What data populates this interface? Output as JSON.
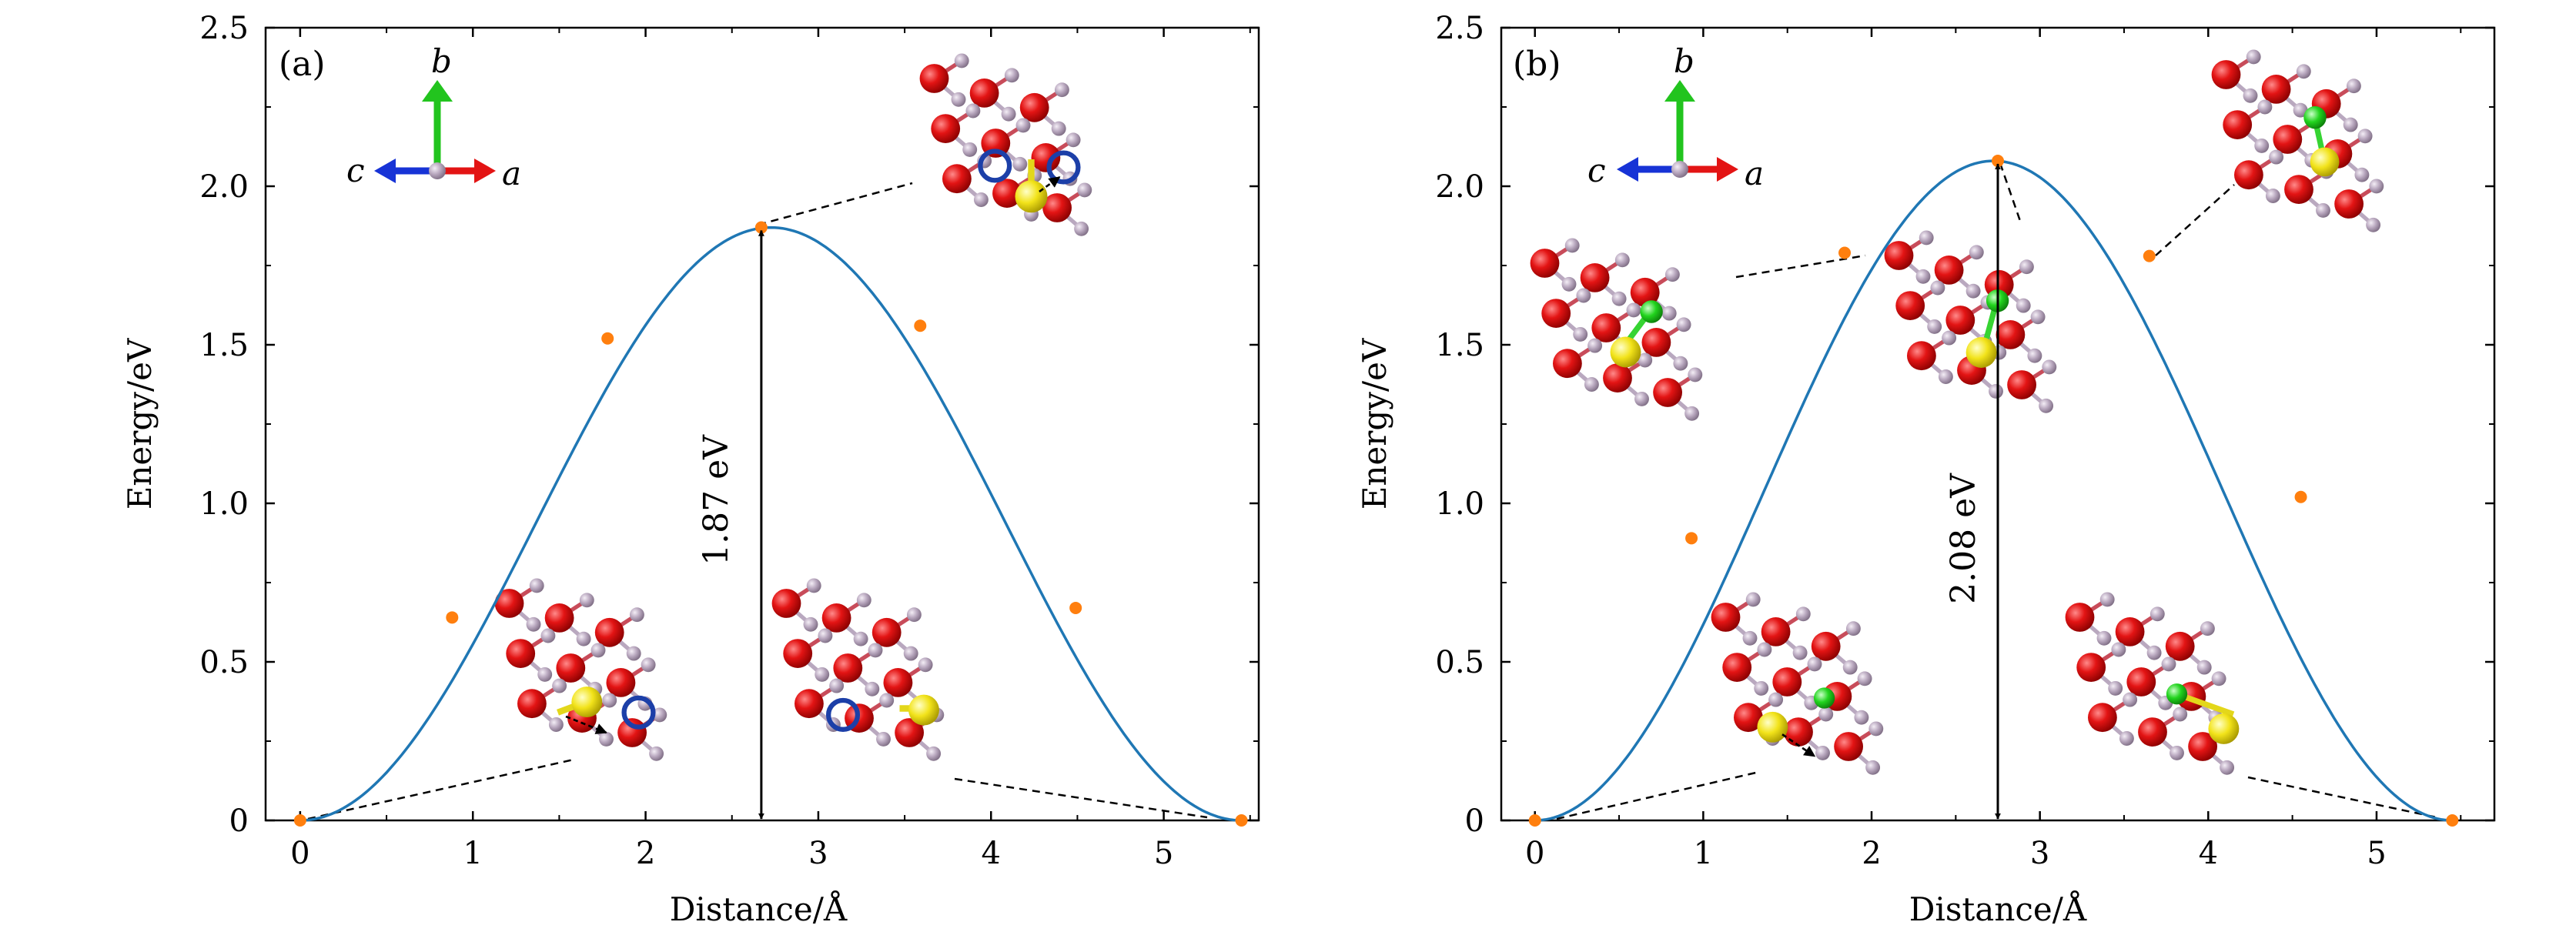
{
  "chart_data": [
    {
      "type": "line",
      "panel_label": "(a)",
      "xlabel": "Distance/Å",
      "ylabel": "Energy/eV",
      "xlim": [
        -0.2,
        5.55
      ],
      "ylim": [
        0,
        2.5
      ],
      "xticks": [
        0,
        1,
        2,
        3,
        4,
        5
      ],
      "yticks": [
        0,
        0.5,
        1.0,
        1.5,
        2.0,
        2.5
      ],
      "ytick_labels": [
        "0",
        "0.5",
        "1.0",
        "1.5",
        "2.0",
        "2.5"
      ],
      "curve": {
        "name": "NEB energy profile",
        "color": "#1f77b4"
      },
      "series": [
        {
          "name": "NEB images",
          "color": "#ff7f0e",
          "x": [
            0,
            0.88,
            1.78,
            2.67,
            3.59,
            4.49,
            5.45
          ],
          "y": [
            0,
            0.64,
            1.52,
            1.87,
            1.56,
            0.67,
            0
          ]
        }
      ],
      "barrier": {
        "x": 2.67,
        "from": 0,
        "to": 1.87,
        "label": "1.87 eV"
      },
      "axes_legend": {
        "b": "b",
        "c": "c",
        "a": "a"
      }
    },
    {
      "type": "line",
      "panel_label": "(b)",
      "xlabel": "Distance/Å",
      "ylabel": "Energy/eV",
      "xlim": [
        -0.2,
        5.7
      ],
      "ylim": [
        0,
        2.5
      ],
      "xticks": [
        0,
        1,
        2,
        3,
        4,
        5
      ],
      "yticks": [
        0,
        0.5,
        1.0,
        1.5,
        2.0,
        2.5
      ],
      "ytick_labels": [
        "0",
        "0.5",
        "1.0",
        "1.5",
        "2.0",
        "2.5"
      ],
      "curve": {
        "name": "NEB energy profile",
        "color": "#1f77b4"
      },
      "series": [
        {
          "name": "NEB images",
          "color": "#ff7f0e",
          "x": [
            0,
            0.93,
            1.84,
            2.75,
            3.65,
            4.55,
            5.45
          ],
          "y": [
            0,
            0.89,
            1.79,
            2.08,
            1.78,
            1.02,
            0
          ]
        }
      ],
      "barrier": {
        "x": 2.75,
        "from": 0,
        "to": 2.08,
        "label": "2.08 eV"
      },
      "axes_legend": {
        "b": "b",
        "c": "c",
        "a": "a"
      }
    }
  ]
}
